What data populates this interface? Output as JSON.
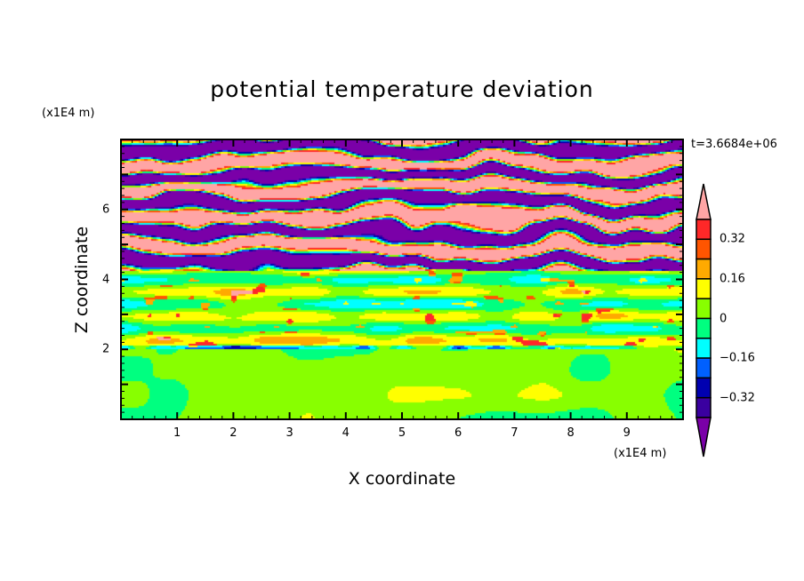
{
  "chart_data": {
    "type": "heatmap",
    "title": "potential temperature deviation",
    "xlabel": "X coordinate",
    "ylabel": "Z coordinate",
    "x_unit": "(x1E4 m)",
    "y_unit": "(x1E4 m)",
    "time_label": "t=3.6684e+06",
    "xlim": [
      0,
      10
    ],
    "ylim": [
      0,
      8
    ],
    "xticks": [
      "1",
      "2",
      "3",
      "4",
      "5",
      "6",
      "7",
      "8",
      "9"
    ],
    "yticks": [
      "2",
      "4",
      "6"
    ],
    "levels": [
      -0.4,
      -0.32,
      -0.24,
      -0.16,
      -0.08,
      0,
      0.08,
      0.16,
      0.24,
      0.32,
      0.4
    ],
    "colorbar_labels": [
      {
        "value": 0.32,
        "text": "0.32"
      },
      {
        "value": 0.16,
        "text": "0.16"
      },
      {
        "value": 0,
        "text": "0"
      },
      {
        "value": -0.16,
        "text": "-0.16"
      },
      {
        "value": -0.32,
        "text": "-0.32"
      }
    ],
    "colors": [
      "#7a00a8",
      "#3a00a0",
      "#0000b0",
      "#0060ff",
      "#00ffff",
      "#00ff80",
      "#88ff00",
      "#ffff00",
      "#ffaa00",
      "#ff5500",
      "#ff2828",
      "#ffa5a5"
    ]
  }
}
